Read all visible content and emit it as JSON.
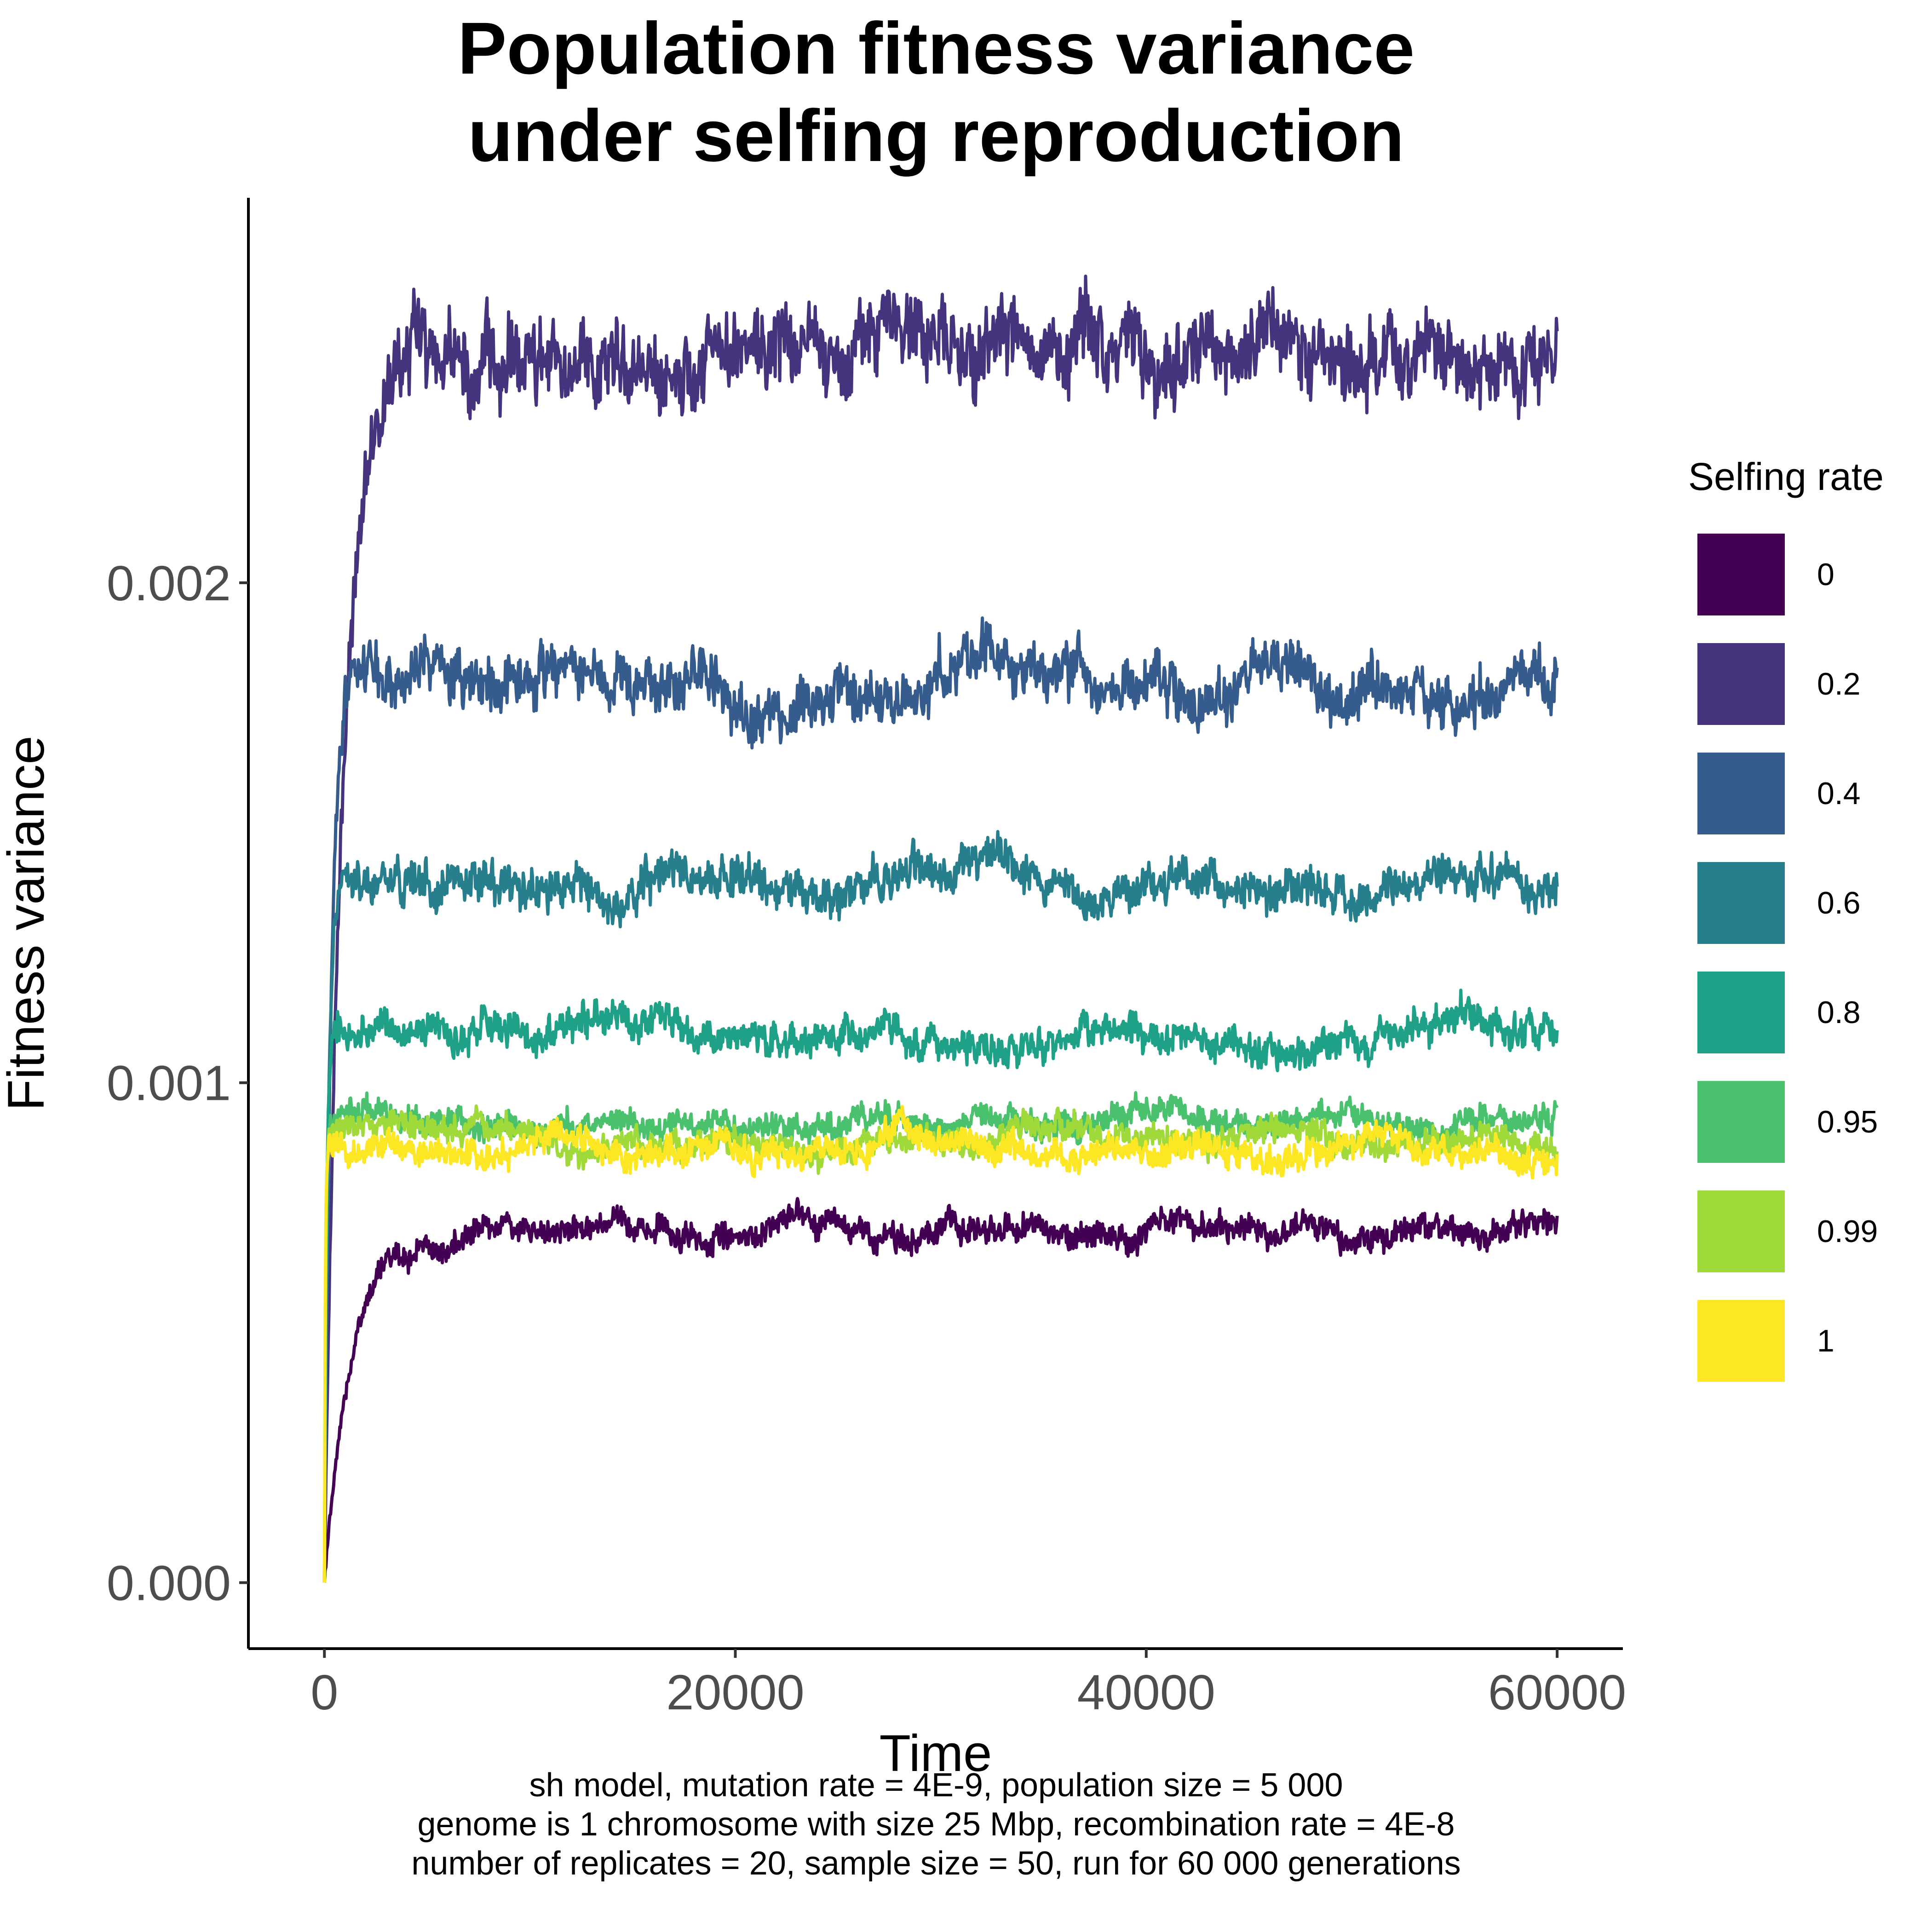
{
  "chart_data": {
    "type": "line",
    "title_lines": [
      "Population fitness variance",
      "under selfing reproduction"
    ],
    "xlabel": "Time",
    "ylabel": "Fitness variance",
    "xlim": [
      -3700,
      63200
    ],
    "ylim": [
      -0.000132,
      0.00277
    ],
    "x_ticks": [
      {
        "value": 0,
        "label": "0"
      },
      {
        "value": 20000,
        "label": "20000"
      },
      {
        "value": 40000,
        "label": "40000"
      },
      {
        "value": 60000,
        "label": "60000"
      }
    ],
    "y_ticks": [
      {
        "value": 0,
        "label": "0.000"
      },
      {
        "value": 0.001,
        "label": "0.001"
      },
      {
        "value": 0.002,
        "label": "0.002"
      }
    ],
    "grid": false,
    "legend": {
      "title": "Selfing rate",
      "position": "right"
    },
    "x_range": [
      0,
      60000
    ],
    "series": [
      {
        "name": "0",
        "color": "#440154",
        "plateau": 0.000705,
        "rise_time": 1300,
        "noise": 2.8e-05,
        "zorder": 1
      },
      {
        "name": "0.2",
        "color": "#46337E",
        "plateau": 0.00243,
        "rise_time": 850,
        "noise": 8e-05,
        "zorder": 2
      },
      {
        "name": "0.4",
        "color": "#365C8D",
        "plateau": 0.00181,
        "rise_time": 320,
        "noise": 5.5e-05,
        "zorder": 3
      },
      {
        "name": "0.6",
        "color": "#277F8E",
        "plateau": 0.0014,
        "rise_time": 180,
        "noise": 4.2e-05,
        "zorder": 4
      },
      {
        "name": "0.8",
        "color": "#1FA187",
        "plateau": 0.00109,
        "rise_time": 100,
        "noise": 3.5e-05,
        "zorder": 5
      },
      {
        "name": "0.95",
        "color": "#4AC16D",
        "plateau": 0.00092,
        "rise_time": 60,
        "noise": 2.8e-05,
        "zorder": 6
      },
      {
        "name": "0.99",
        "color": "#9FDA3A",
        "plateau": 0.000885,
        "rise_time": 50,
        "noise": 2.8e-05,
        "zorder": 7
      },
      {
        "name": "1",
        "color": "#FDE725",
        "plateau": 0.00087,
        "rise_time": 40,
        "noise": 3e-05,
        "zorder": 8
      }
    ],
    "caption_lines": [
      "sh model, mutation rate = 4E-9, population size = 5 000",
      "genome is 1 chromosome with size 25 Mbp, recombination rate = 4E-8",
      "number of replicates = 20, sample size = 50, run for 60 000 generations"
    ]
  }
}
